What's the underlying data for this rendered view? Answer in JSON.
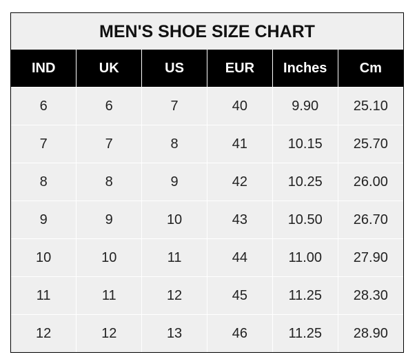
{
  "title": "MEN'S SHOE SIZE CHART",
  "columns": [
    "IND",
    "UK",
    "US",
    "EUR",
    "Inches",
    "Cm"
  ],
  "rows": [
    [
      "6",
      "6",
      "7",
      "40",
      "9.90",
      "25.10"
    ],
    [
      "7",
      "7",
      "8",
      "41",
      "10.15",
      "25.70"
    ],
    [
      "8",
      "8",
      "9",
      "42",
      "10.25",
      "26.00"
    ],
    [
      "9",
      "9",
      "10",
      "43",
      "10.50",
      "26.70"
    ],
    [
      "10",
      "10",
      "11",
      "44",
      "11.00",
      "27.90"
    ],
    [
      "11",
      "11",
      "12",
      "45",
      "11.25",
      "28.30"
    ],
    [
      "12",
      "12",
      "13",
      "46",
      "11.25",
      "28.90"
    ]
  ]
}
